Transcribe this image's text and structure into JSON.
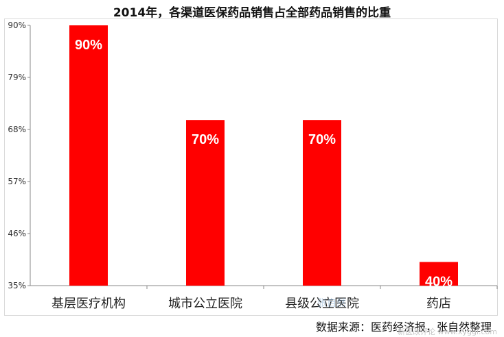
{
  "chart_data": {
    "type": "bar",
    "title": "2014年，各渠道医保药品销售占全部药品销售的比重",
    "categories": [
      "基层医疗机构",
      "城市公立医院",
      "县级公立医院",
      "药店"
    ],
    "values": [
      90,
      70,
      70,
      40
    ],
    "value_labels": [
      "90%",
      "70%",
      "70%",
      "40%"
    ],
    "yticks": [
      "90%",
      "79%",
      "68%",
      "57%",
      "46%",
      "35%"
    ],
    "ytick_values": [
      90,
      79,
      68,
      57,
      46,
      35
    ],
    "ylim": [
      35,
      90
    ],
    "xlabel": "",
    "ylabel": "",
    "grid": false,
    "bar_color": "#ff0000"
  },
  "source": "数据来源：医药经济报，张自然整理",
  "watermark": "新医改评论 www.xyggl.com",
  "watermark_mid": "张自然"
}
